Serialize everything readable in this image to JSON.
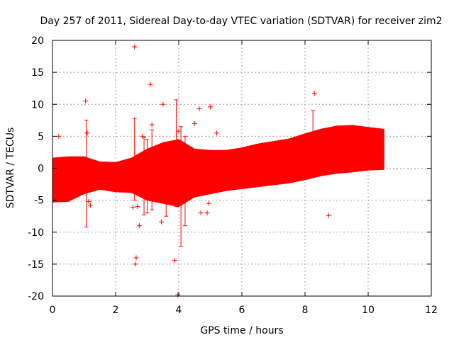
{
  "chart_data": {
    "type": "scatter",
    "title": "Day 257 of 2011, Sidereal Day-to-day VTEC variation (SDTVAR) for receiver zim2",
    "xlabel": "GPS time / hours",
    "ylabel": "SDTVAR / TECUs",
    "xlim": [
      0,
      12
    ],
    "ylim": [
      -20,
      20
    ],
    "x_ticks": [
      0,
      2,
      4,
      6,
      8,
      10,
      12
    ],
    "y_ticks": [
      -20,
      -15,
      -10,
      -5,
      0,
      5,
      10,
      15,
      20
    ],
    "grid": true,
    "series_color": "#ff0000",
    "band": {
      "x": [
        0.0,
        0.5,
        1.0,
        1.5,
        2.0,
        2.5,
        3.0,
        3.5,
        4.0,
        4.5,
        5.0,
        5.5,
        6.0,
        6.5,
        7.0,
        7.5,
        8.0,
        8.5,
        9.0,
        9.5,
        10.0,
        10.5
      ],
      "lower": [
        -5.3,
        -5.2,
        -4.0,
        -3.3,
        -3.7,
        -3.8,
        -5.0,
        -5.5,
        -6.0,
        -4.5,
        -4.0,
        -3.5,
        -3.2,
        -2.9,
        -2.6,
        -2.3,
        -1.8,
        -1.2,
        -0.8,
        -0.6,
        -0.3,
        -0.2
      ],
      "upper": [
        1.6,
        1.8,
        1.8,
        1.0,
        0.9,
        1.6,
        3.0,
        4.0,
        4.5,
        3.0,
        2.8,
        2.8,
        3.2,
        3.8,
        4.2,
        4.6,
        5.4,
        6.1,
        6.6,
        6.7,
        6.4,
        6.1
      ]
    },
    "error_bars": [
      {
        "x": 1.07,
        "low": -9.2,
        "high": 7.5
      },
      {
        "x": 2.6,
        "low": -5.0,
        "high": 7.8
      },
      {
        "x": 2.9,
        "low": -7.3,
        "high": 4.8
      },
      {
        "x": 3.0,
        "low": -7.0,
        "high": 4.5
      },
      {
        "x": 3.15,
        "low": -6.5,
        "high": 6.0
      },
      {
        "x": 3.6,
        "low": -7.5,
        "high": 3.5
      },
      {
        "x": 3.92,
        "low": -6.0,
        "high": 10.7
      },
      {
        "x": 4.07,
        "low": -12.2,
        "high": 6.5
      },
      {
        "x": 4.2,
        "low": -9.0,
        "high": 5.0
      },
      {
        "x": 8.25,
        "low": 3.5,
        "high": 9.0
      }
    ],
    "outliers": [
      {
        "x": 0.2,
        "y": 5.0
      },
      {
        "x": 1.05,
        "y": 10.5
      },
      {
        "x": 1.1,
        "y": 5.5
      },
      {
        "x": 1.15,
        "y": -5.2
      },
      {
        "x": 1.2,
        "y": -5.8
      },
      {
        "x": 2.6,
        "y": 19.0
      },
      {
        "x": 2.65,
        "y": -14.0
      },
      {
        "x": 2.62,
        "y": -15.0
      },
      {
        "x": 2.55,
        "y": -6.1
      },
      {
        "x": 2.7,
        "y": -6.0
      },
      {
        "x": 2.75,
        "y": -9.0
      },
      {
        "x": 2.85,
        "y": 5.0
      },
      {
        "x": 3.1,
        "y": 13.1
      },
      {
        "x": 3.15,
        "y": 6.8
      },
      {
        "x": 3.5,
        "y": 10.0
      },
      {
        "x": 3.45,
        "y": -8.4
      },
      {
        "x": 3.87,
        "y": -14.4
      },
      {
        "x": 3.97,
        "y": -19.8
      },
      {
        "x": 4.0,
        "y": 5.8
      },
      {
        "x": 4.5,
        "y": 7.0
      },
      {
        "x": 4.65,
        "y": 9.3
      },
      {
        "x": 4.7,
        "y": -7.0
      },
      {
        "x": 4.9,
        "y": -7.0
      },
      {
        "x": 4.95,
        "y": -5.5
      },
      {
        "x": 5.0,
        "y": 9.6
      },
      {
        "x": 5.2,
        "y": 5.5
      },
      {
        "x": 8.3,
        "y": 11.7
      },
      {
        "x": 8.75,
        "y": -7.4
      }
    ]
  }
}
